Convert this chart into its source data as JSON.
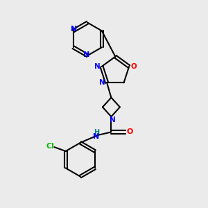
{
  "background_color": "#ebebeb",
  "bond_color": "#000000",
  "n_color": "#0000ff",
  "o_color": "#ff0000",
  "cl_color": "#00bb00",
  "h_color": "#008080",
  "figsize": [
    3.0,
    3.0
  ],
  "dpi": 100,
  "xlim": [
    0,
    10
  ],
  "ylim": [
    0,
    10
  ]
}
